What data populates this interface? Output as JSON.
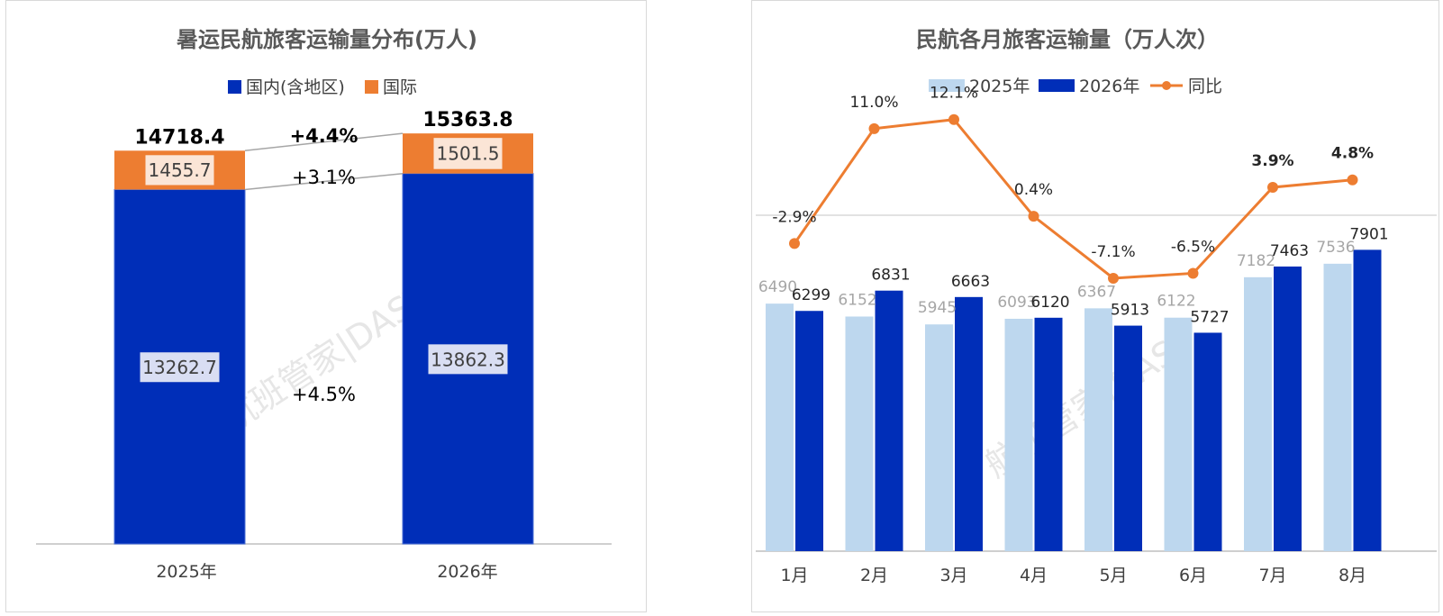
{
  "colors": {
    "domestic": "#002eb8",
    "international": "#ed7d31",
    "y2025": "#bdd7ee",
    "y2026": "#002eb8",
    "yoy": "#ed7d31",
    "value_box_light": "#fbe5d6",
    "value_box_blue": "#d9def3"
  },
  "watermark": "航班管家|DAST",
  "chart_data": [
    {
      "type": "bar",
      "stacked": true,
      "title": "暑运民航旅客运输量分布(万人)",
      "legend_position": "top",
      "categories": [
        "2025年",
        "2026年"
      ],
      "series": [
        {
          "name": "国内(含地区)",
          "values": [
            13262.7,
            13862.3
          ],
          "labels": [
            "13262.7",
            "13862.3"
          ]
        },
        {
          "name": "国际",
          "values": [
            1455.7,
            1501.5
          ],
          "labels": [
            "1455.7",
            "1501.5"
          ]
        }
      ],
      "totals": [
        "14718.4",
        "15363.8"
      ],
      "growth": {
        "total": "+4.4%",
        "international": "+3.1%",
        "domestic": "+4.5%"
      },
      "grid": false
    },
    {
      "type": "bar",
      "title": "民航各月旅客运输量（万人次）",
      "legend_position": "top",
      "categories": [
        "1月",
        "2月",
        "3月",
        "4月",
        "5月",
        "6月",
        "7月",
        "8月"
      ],
      "series": [
        {
          "name": "2025年",
          "values": [
            6490,
            6152,
            5945,
            6093,
            6367,
            6122,
            7182,
            7536
          ]
        },
        {
          "name": "2026年",
          "values": [
            6299,
            6831,
            6663,
            6120,
            5913,
            5727,
            7463,
            7901
          ]
        }
      ],
      "line_series": {
        "name": "同比",
        "values": [
          -2.9,
          11.0,
          12.1,
          0.4,
          -7.1,
          -6.5,
          3.9,
          4.8
        ],
        "labels": [
          "-2.9%",
          "11.0%",
          "12.1%",
          "0.4%",
          "-7.1%",
          "-6.5%",
          "3.9%",
          "4.8%"
        ]
      },
      "grid": false
    }
  ]
}
